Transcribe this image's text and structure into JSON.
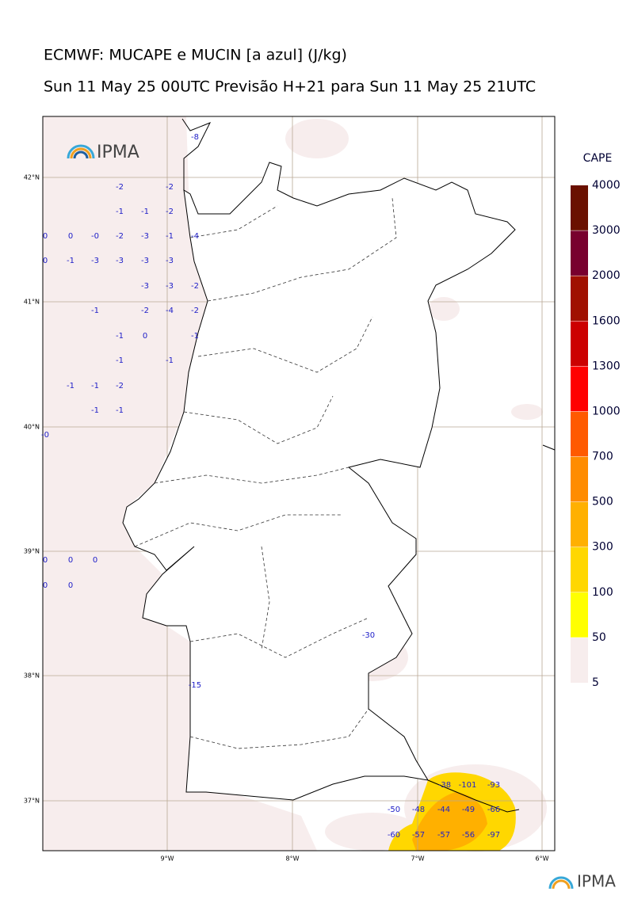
{
  "title": "ECMWF: MUCAPE e MUCIN [a azul] (J/kg)",
  "subtitle": "Sun 11 May 25 00UTC Previsão H+21 para Sun 11 May 25 21UTC",
  "logo": "IPMA",
  "footer_logo": "IPMA",
  "map": {
    "lat_labels": [
      "42°N",
      "41°N",
      "40°N",
      "39°N",
      "38°N",
      "37°N"
    ],
    "lon_labels": [
      "9°W",
      "8°W",
      "7°W",
      "6°W"
    ],
    "cin_labels": [
      -8,
      -2,
      -2,
      -1,
      -1,
      -2,
      0,
      0,
      {
        "value": 0,
        "label": "-0"
      },
      -2,
      -3,
      -1,
      -4,
      0,
      -1,
      -3,
      -3,
      -3,
      -3,
      -3,
      -3,
      -2,
      -1,
      -2,
      -4,
      -2,
      -1,
      0,
      -1,
      -1,
      -1,
      -1,
      -1,
      -2,
      -1,
      -1,
      {
        "value": 0,
        "label": "-0"
      },
      0,
      0,
      0,
      0,
      0,
      -30,
      -15,
      -38,
      -101,
      -93,
      -50,
      -48,
      -44,
      -49,
      -66,
      -60,
      -57,
      -57,
      -56,
      -97
    ]
  },
  "colorbar": {
    "title": "CAPE",
    "levels": [
      5,
      50,
      100,
      300,
      500,
      700,
      1000,
      1300,
      1600,
      2000,
      3000,
      4000
    ],
    "colors": [
      "#f7eded",
      "#ffff00",
      "#ffd700",
      "#ffb000",
      "#ff8c00",
      "#ff5a00",
      "#ff0000",
      "#cc0000",
      "#a01000",
      "#78002e",
      "#6a1000"
    ]
  }
}
